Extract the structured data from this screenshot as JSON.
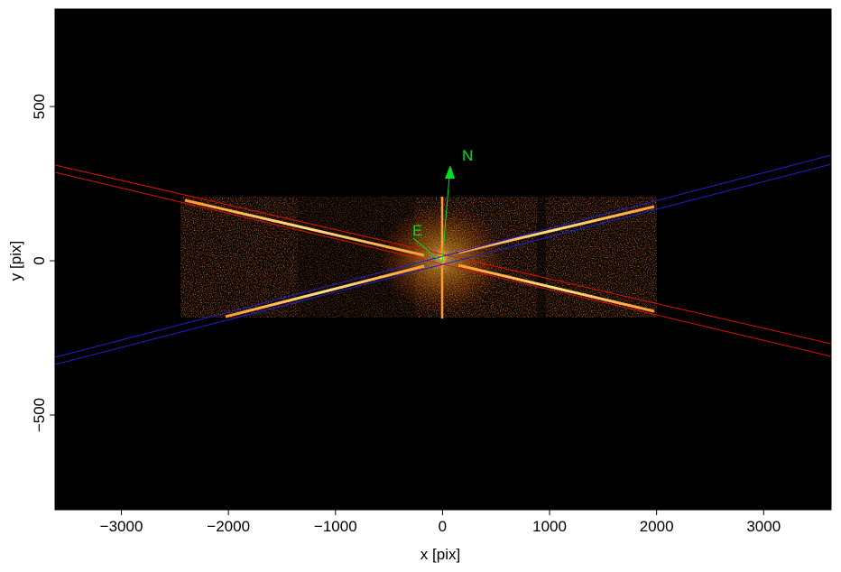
{
  "chart_data": {
    "type": "image",
    "xlabel": "x [pix]",
    "ylabel": "y [pix]",
    "xlim": [
      -3620,
      3630
    ],
    "ylim": [
      -807,
      816
    ],
    "xticks": [
      {
        "value": -3000,
        "label": "−3000"
      },
      {
        "value": -2000,
        "label": "−2000"
      },
      {
        "value": -1000,
        "label": "−1000"
      },
      0,
      1000,
      2000,
      3000
    ],
    "yticks": [
      {
        "value": -500,
        "label": "−500"
      },
      0,
      500
    ],
    "annotations": [
      "N",
      "E"
    ]
  }
}
